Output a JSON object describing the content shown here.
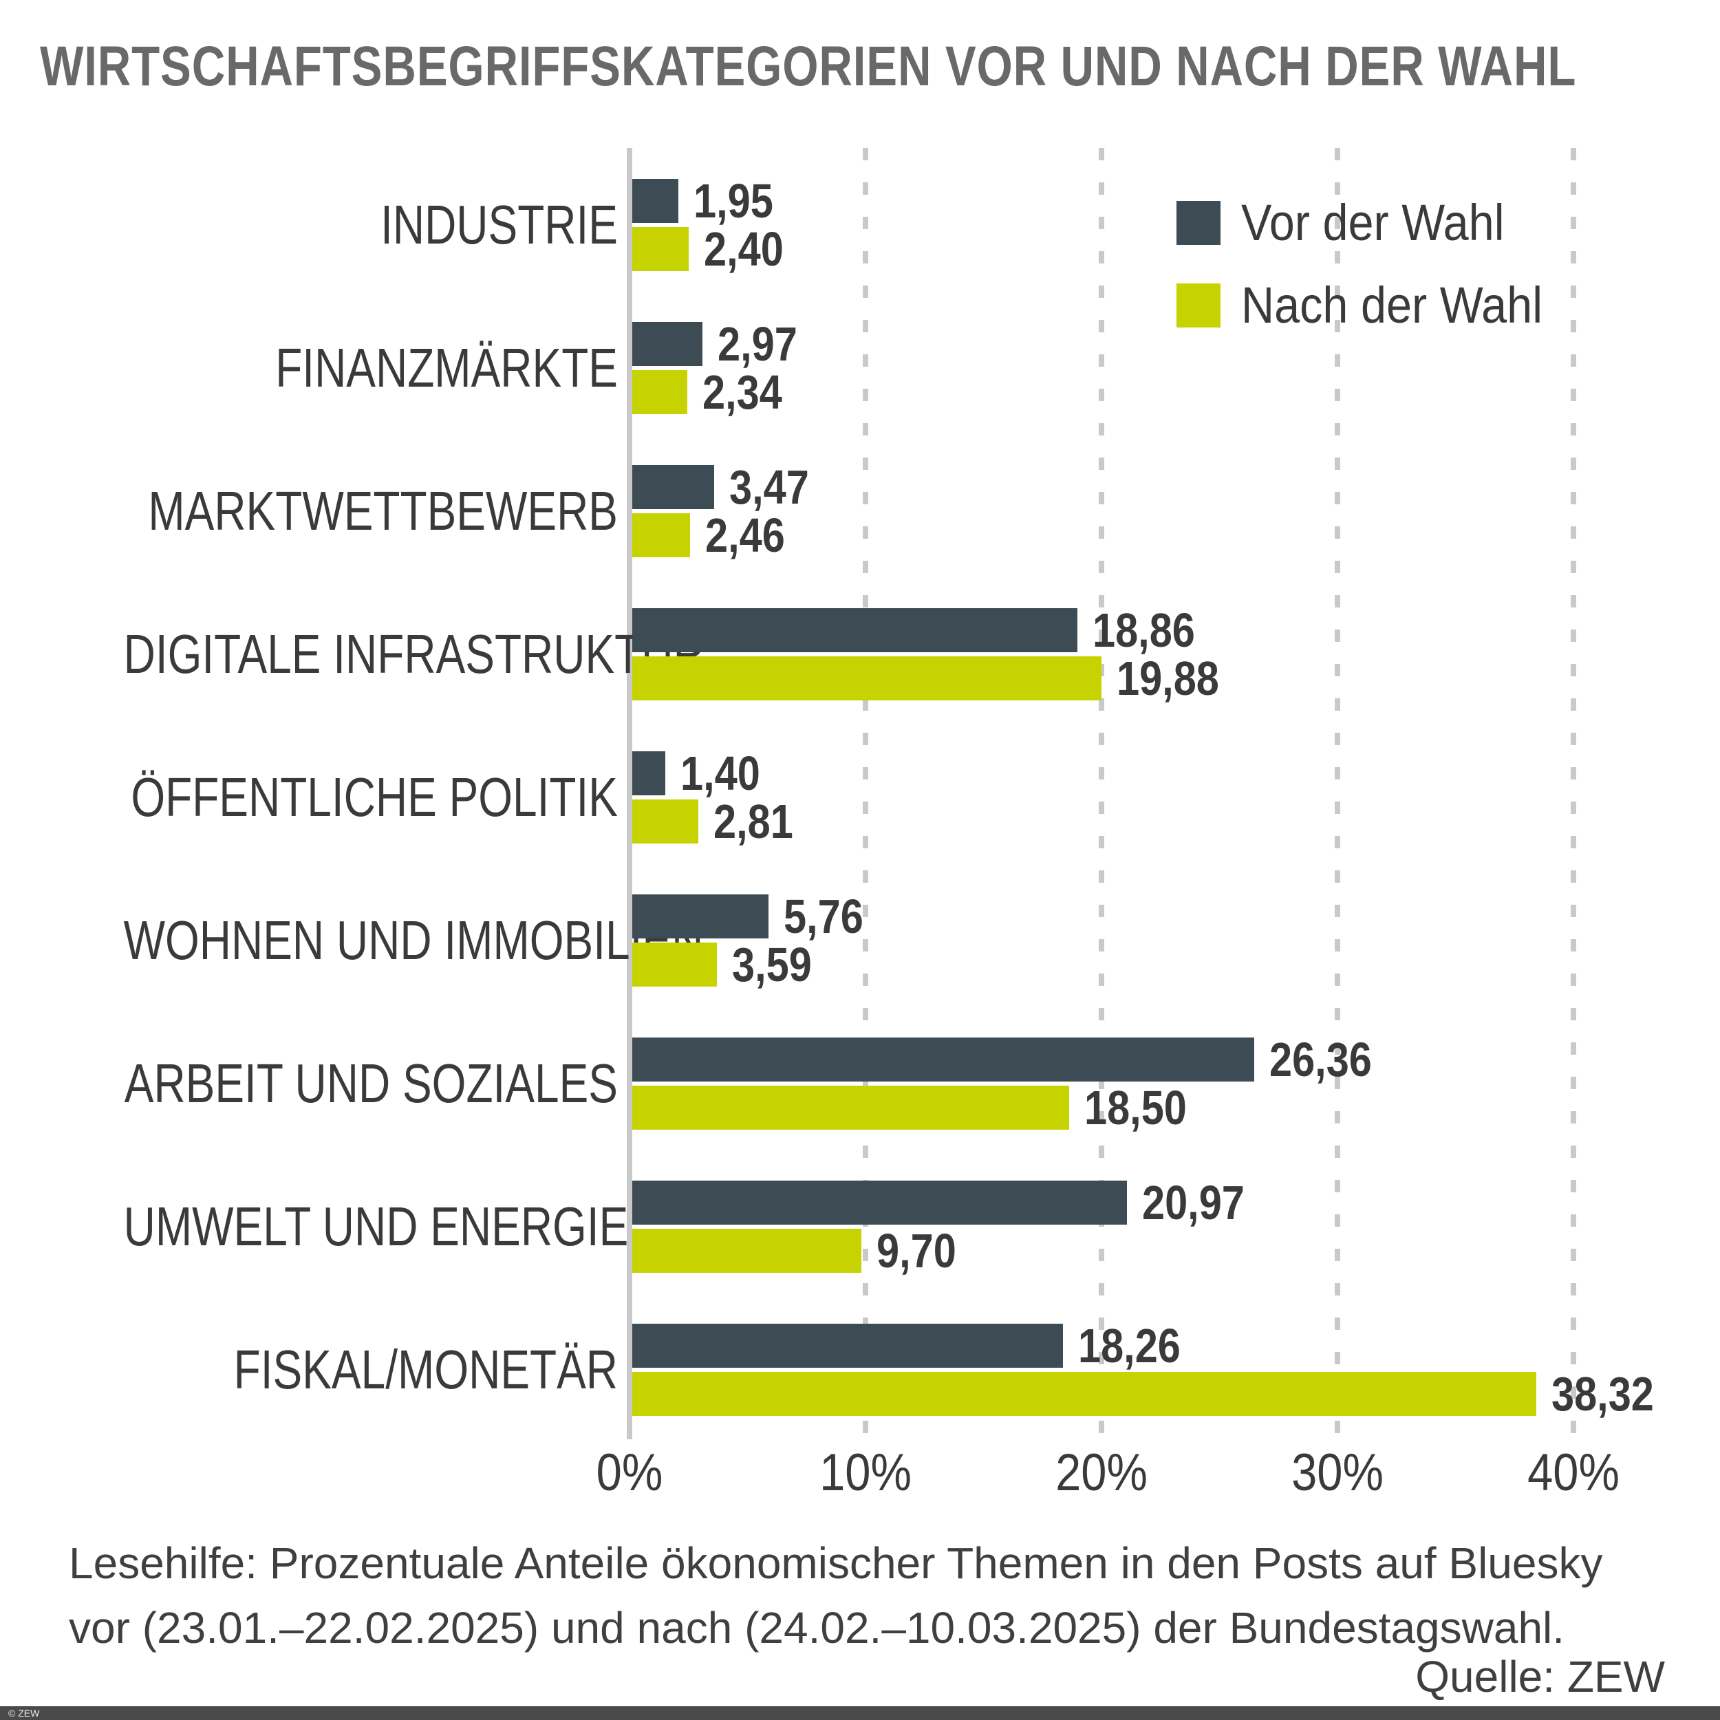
{
  "title": "WIRTSCHAFTSBEGRIFFSKATEGORIEN VOR UND NACH DER WAHL",
  "legend": [
    {
      "label": "Vor der Wahl",
      "color": "#3d4b54"
    },
    {
      "label": "Nach der Wahl",
      "color": "#c6d300"
    }
  ],
  "chart_data": {
    "type": "bar",
    "orientation": "horizontal",
    "title": "WIRTSCHAFTSBEGRIFFSKATEGORIEN VOR UND NACH DER WAHL",
    "categories": [
      "INDUSTRIE",
      "FINANZMÄRKTE",
      "MARKTWETTBEWERB",
      "DIGITALE INFRASTRUKTUR",
      "ÖFFENTLICHE POLITIK",
      "WOHNEN UND IMMOBILIEN",
      "ARBEIT UND SOZIALES",
      "UMWELT UND ENERGIE",
      "FISKAL/MONETÄR"
    ],
    "series": [
      {
        "name": "Vor der Wahl",
        "color": "#3d4b54",
        "values": [
          1.95,
          2.97,
          3.47,
          18.86,
          1.4,
          5.76,
          26.36,
          20.97,
          18.26
        ],
        "labels": [
          "1,95",
          "2,97",
          "3,47",
          "18,86",
          "1,40",
          "5,76",
          "26,36",
          "20,97",
          "18,26"
        ]
      },
      {
        "name": "Nach der Wahl",
        "color": "#c6d300",
        "values": [
          2.4,
          2.34,
          2.46,
          19.88,
          2.81,
          3.59,
          18.5,
          9.7,
          38.32
        ],
        "labels": [
          "2,40",
          "2,34",
          "2,46",
          "19,88",
          "2,81",
          "3,59",
          "18,50",
          "9,70",
          "38,32"
        ]
      }
    ],
    "x_axis": {
      "ticks": [
        "0%",
        "10%",
        "20%",
        "30%",
        "40%"
      ],
      "values": [
        0,
        10,
        20,
        30,
        40
      ],
      "min": 0,
      "max": 40,
      "unit": "%"
    },
    "grid": "vertical-dashed",
    "legend_position": "top-right",
    "value_labels": "outside-end"
  },
  "footer": {
    "lesehilfe_line1": "Lesehilfe: Prozentuale Anteile ökonomischer Themen in den Posts auf Bluesky",
    "lesehilfe_line2": "vor (23.01.–22.02.2025) und nach (24.02.–10.03.2025) der Bundestagswahl.",
    "source": "Quelle: ZEW",
    "copyright": "© ZEW"
  }
}
